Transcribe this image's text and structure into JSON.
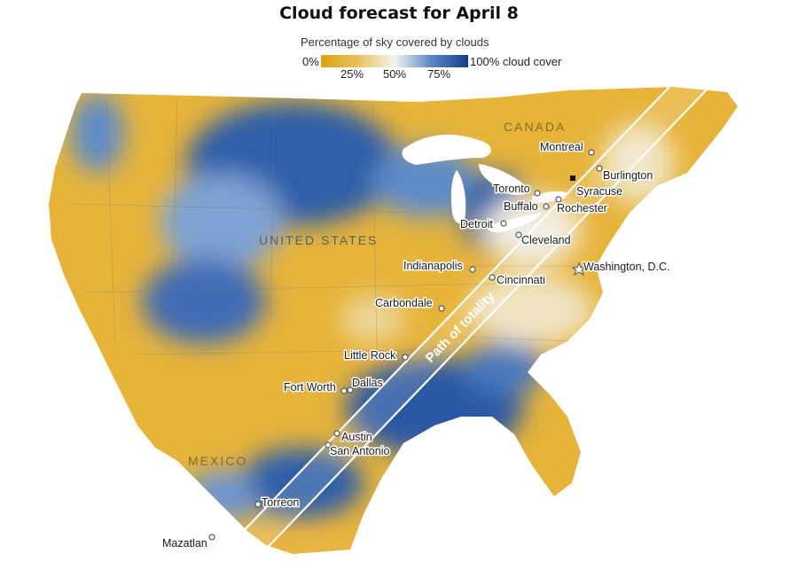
{
  "title": "Cloud forecast for April 8",
  "legend": {
    "caption": "Percentage of sky covered by clouds",
    "min_label": "0%",
    "max_label": "100% cloud cover",
    "ticks": [
      "25%",
      "50%",
      "75%"
    ],
    "colors": {
      "low": "#d9a312",
      "mid": "#f4f4ee",
      "high": "#163e86"
    }
  },
  "regions": {
    "canada": "CANADA",
    "united_states": "UNITED STATES",
    "mexico": "MEXICO"
  },
  "path_label": "Path of totality",
  "cities": {
    "montreal": "Montreal",
    "burlington": "Burlington",
    "toronto": "Toronto",
    "syracuse": "Syracuse",
    "buffalo": "Buffalo",
    "rochester": "Rochester",
    "detroit": "Detroit",
    "cleveland": "Cleveland",
    "indianapolis": "Indianapolis",
    "washington": "Washington, D.C.",
    "cincinnati": "Cincinnati",
    "carbondale": "Carbondale",
    "little_rock": "Little Rock",
    "fort_worth": "Fort Worth",
    "dallas": "Dallas",
    "austin": "Austin",
    "san_antonio": "San Antonio",
    "torreon": "Torreon",
    "mazatlan": "Mazatlan"
  }
}
